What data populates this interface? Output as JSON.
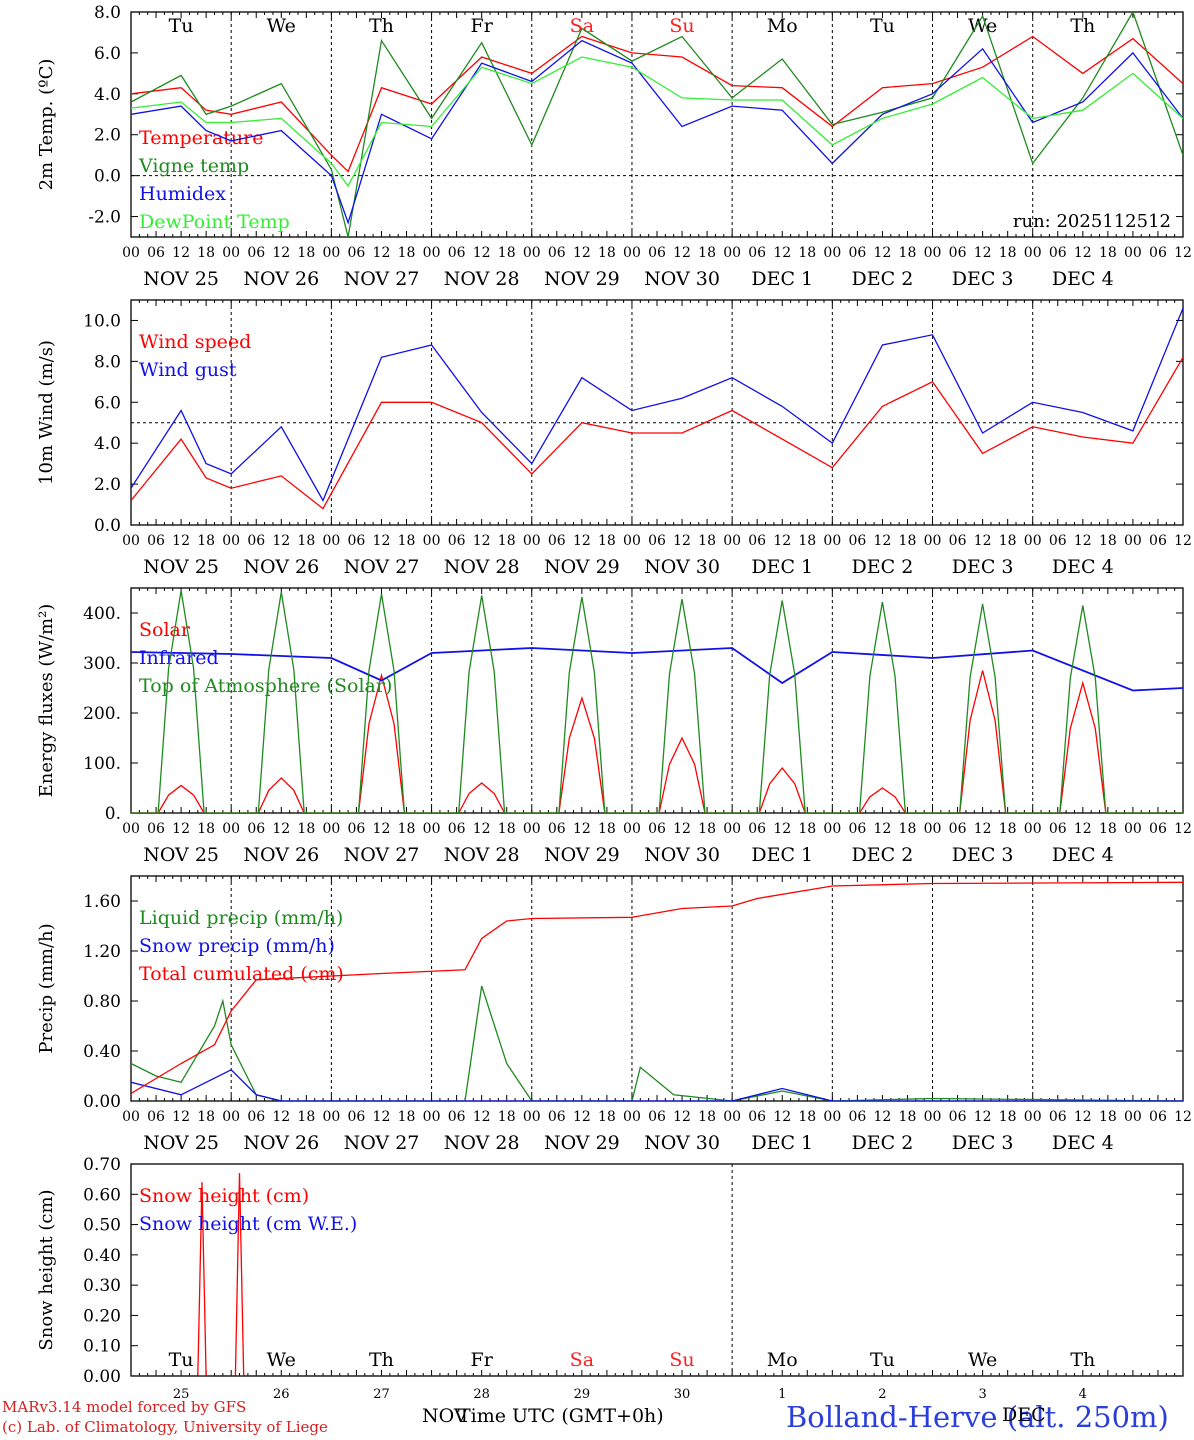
{
  "colors": {
    "red": "#ff0000",
    "green": "#1f8a1f",
    "blue": "#1010e8",
    "lightgreen": "#33ee33",
    "axis": "#000000",
    "weekend": "#ff2020"
  },
  "days": {
    "top": [
      "Tu",
      "We",
      "Th",
      "Fr",
      "Sa",
      "Su",
      "Mo",
      "Tu",
      "We",
      "Th"
    ],
    "weekend_idx": [
      4,
      5
    ],
    "dates": [
      "NOV 25",
      "NOV 26",
      "NOV 27",
      "NOV 28",
      "NOV 29",
      "NOV 30",
      "DEC  1",
      "DEC  2",
      "DEC  3",
      "DEC  4"
    ],
    "hours": [
      "00",
      "06",
      "12",
      "18"
    ],
    "day_numbers": [
      "25",
      "26",
      "27",
      "28",
      "29",
      "30",
      "1",
      "2",
      "3",
      "4"
    ]
  },
  "chart_data": [
    {
      "type": "line",
      "ylabel": "2m Temp. (ºC)",
      "ylim": [
        -3.0,
        8.0
      ],
      "yticks": [
        -2,
        0,
        2,
        4,
        6,
        8
      ],
      "ytick_labels": [
        "-2.0",
        "0.0",
        "2.0",
        "4.0",
        "6.0",
        "8.0"
      ],
      "hline": 0,
      "run": "run: 2025112512",
      "x_hours_from_nov25_00": [
        0,
        12,
        18,
        24,
        36,
        48,
        52,
        60,
        72,
        84,
        96,
        108,
        120,
        132,
        144,
        156,
        168,
        180,
        192,
        204,
        216,
        228,
        240,
        252
      ],
      "series": [
        {
          "name": "Temperature",
          "color": "red",
          "values": [
            4.0,
            4.3,
            3.2,
            3.0,
            3.6,
            1.0,
            0.2,
            4.3,
            3.5,
            5.8,
            5.0,
            6.8,
            6.0,
            5.8,
            4.4,
            4.3,
            2.4,
            4.3,
            4.5,
            5.3,
            6.8,
            5.0,
            6.7,
            4.5
          ]
        },
        {
          "name": "Vigne temp",
          "color": "green",
          "values": [
            3.6,
            4.9,
            3.0,
            3.4,
            4.5,
            0.3,
            -3.0,
            6.6,
            2.8,
            6.5,
            1.5,
            7.2,
            5.6,
            6.8,
            3.8,
            5.7,
            2.5,
            3.1,
            3.8,
            7.8,
            0.6,
            3.8,
            8.0,
            1.0
          ]
        },
        {
          "name": "Humidex",
          "color": "blue",
          "values": [
            3.0,
            3.4,
            2.2,
            1.7,
            2.2,
            0.0,
            -2.3,
            3.0,
            1.8,
            5.5,
            4.6,
            6.6,
            5.5,
            2.4,
            3.4,
            3.2,
            0.6,
            3.0,
            4.0,
            6.2,
            2.6,
            3.6,
            6.0,
            2.8
          ]
        },
        {
          "name": "DewPoint Temp",
          "color": "lightgreen",
          "values": [
            3.3,
            3.6,
            2.6,
            2.6,
            2.8,
            0.6,
            -0.5,
            2.6,
            2.4,
            5.3,
            4.5,
            5.8,
            5.3,
            3.8,
            3.7,
            3.7,
            1.5,
            2.8,
            3.5,
            4.8,
            2.8,
            3.2,
            5.0,
            2.8
          ]
        }
      ]
    },
    {
      "type": "line",
      "ylabel": "10m Wind (m/s)",
      "ylim": [
        0,
        11
      ],
      "yticks": [
        0,
        2,
        4,
        6,
        8,
        10
      ],
      "ytick_labels": [
        "0.0",
        "2.0",
        "4.0",
        "6.0",
        "8.0",
        "10.0"
      ],
      "hline": 5,
      "x_hours_from_nov25_00": [
        0,
        12,
        18,
        24,
        36,
        46,
        60,
        72,
        84,
        96,
        108,
        120,
        132,
        144,
        156,
        168,
        180,
        192,
        204,
        216,
        228,
        240,
        252
      ],
      "series": [
        {
          "name": "Wind speed",
          "color": "red",
          "values": [
            1.2,
            4.2,
            2.3,
            1.8,
            2.4,
            0.8,
            6.0,
            6.0,
            5.0,
            2.5,
            5.0,
            4.5,
            4.5,
            5.6,
            4.2,
            2.8,
            5.8,
            7.0,
            3.5,
            4.8,
            4.3,
            4.0,
            8.2
          ]
        },
        {
          "name": "Wind gust",
          "color": "blue",
          "values": [
            1.8,
            5.6,
            3.0,
            2.5,
            4.8,
            1.2,
            8.2,
            8.8,
            5.5,
            3.0,
            7.2,
            5.6,
            6.2,
            7.2,
            5.8,
            4.0,
            8.8,
            9.3,
            4.5,
            6.0,
            5.5,
            4.6,
            10.6
          ]
        }
      ]
    },
    {
      "type": "line",
      "ylabel": "Energy fluxes (W/m²)",
      "ylim": [
        0,
        450
      ],
      "yticks": [
        0,
        100,
        200,
        300,
        400
      ],
      "ytick_labels": [
        "0.",
        "100.",
        "200.",
        "300.",
        "400."
      ],
      "series": [
        {
          "name": "Solar",
          "color": "red",
          "daily_peak": [
            55,
            70,
            275,
            60,
            230,
            150,
            90,
            50,
            285,
            260
          ]
        },
        {
          "name": "Infrared",
          "color": "blue",
          "x_hours_from_nov25_00": [
            0,
            24,
            48,
            60,
            72,
            96,
            120,
            144,
            156,
            168,
            192,
            216,
            240,
            252
          ],
          "values": [
            322,
            318,
            310,
            265,
            320,
            330,
            320,
            330,
            260,
            322,
            310,
            325,
            245,
            250
          ]
        },
        {
          "name": "Top of Atmosphere (Solar)",
          "color": "green",
          "daily_peak": [
            445,
            442,
            438,
            435,
            432,
            428,
            425,
            422,
            418,
            415
          ]
        }
      ]
    },
    {
      "type": "line",
      "ylabel": "Precip (mm/h)",
      "ylim": [
        0,
        1.8
      ],
      "yticks": [
        0,
        0.4,
        0.8,
        1.2,
        1.6
      ],
      "ytick_labels": [
        "0.00",
        "0.40",
        "0.80",
        "1.20",
        "1.60"
      ],
      "series": [
        {
          "name": "Liquid precip (mm/h)",
          "color": "green",
          "x_hours_from_nov25_00": [
            0,
            6,
            12,
            20,
            22,
            24,
            30,
            36,
            60,
            80,
            84,
            90,
            96,
            120,
            122,
            130,
            144,
            156,
            168,
            192,
            252
          ],
          "values": [
            0.3,
            0.2,
            0.15,
            0.6,
            0.8,
            0.45,
            0.05,
            0.0,
            0.0,
            0.0,
            0.92,
            0.3,
            0.0,
            0.0,
            0.27,
            0.05,
            0.0,
            0.08,
            0.0,
            0.02,
            0.0
          ]
        },
        {
          "name": "Snow precip (mm/h)",
          "color": "blue",
          "x_hours_from_nov25_00": [
            0,
            12,
            24,
            30,
            36,
            144,
            156,
            168,
            252
          ],
          "values": [
            0.15,
            0.05,
            0.25,
            0.05,
            0.0,
            0.0,
            0.1,
            0.0,
            0.0
          ]
        },
        {
          "name": "Total cumulated (cm)",
          "color": "red",
          "x_hours_from_nov25_00": [
            0,
            12,
            20,
            24,
            30,
            60,
            80,
            84,
            90,
            96,
            120,
            132,
            144,
            150,
            168,
            192,
            252
          ],
          "values": [
            0.06,
            0.3,
            0.45,
            0.72,
            0.97,
            1.02,
            1.05,
            1.3,
            1.44,
            1.46,
            1.47,
            1.54,
            1.56,
            1.62,
            1.72,
            1.74,
            1.75
          ]
        }
      ]
    },
    {
      "type": "line",
      "ylabel": "Snow height (cm)",
      "ylim": [
        0,
        0.7
      ],
      "yticks": [
        0,
        0.1,
        0.2,
        0.3,
        0.4,
        0.5,
        0.6,
        0.7
      ],
      "ytick_labels": [
        "0.00",
        "0.10",
        "0.20",
        "0.30",
        "0.40",
        "0.50",
        "0.60",
        "0.70"
      ],
      "series": [
        {
          "name": "Snow height (cm)",
          "color": "red",
          "x_hours_from_nov25_00": [
            0,
            16,
            17,
            18,
            25,
            26,
            27,
            252
          ],
          "values": [
            0,
            0,
            0.64,
            0,
            0,
            0.67,
            0,
            0
          ]
        },
        {
          "name": "Snow height (cm W.E.)",
          "color": "blue",
          "x_hours_from_nov25_00": [
            0,
            252
          ],
          "values": [
            0,
            0
          ]
        }
      ]
    }
  ],
  "footer": {
    "credit1": "MARv3.14 model forced by GFS",
    "credit2": "(c) Lab. of Climatology, University of Liege",
    "xlabel_fr": "NOV",
    "xlabel_en": "Time UTC (GMT+0h)",
    "station": "Bolland-Herve (alt. 250m)",
    "month": "DEC"
  }
}
